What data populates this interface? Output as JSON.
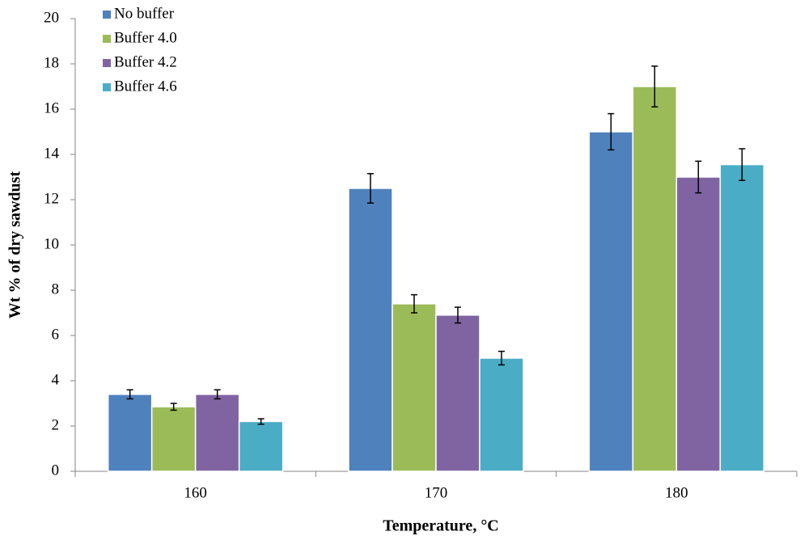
{
  "chart_data": {
    "type": "bar",
    "x_label": "Temperature, °C",
    "y_label": "Wt % of dry sawdust",
    "categories": [
      "160",
      "170",
      "180"
    ],
    "series": [
      {
        "name": "No buffer",
        "color": "#4f81bd",
        "values": [
          3.4,
          12.5,
          15.0
        ],
        "errors": [
          0.2,
          0.65,
          0.8
        ]
      },
      {
        "name": "Buffer 4.0",
        "color": "#9bbb59",
        "values": [
          2.85,
          7.4,
          17.0
        ],
        "errors": [
          0.15,
          0.4,
          0.9
        ]
      },
      {
        "name": "Buffer 4.2",
        "color": "#8064a2",
        "values": [
          3.4,
          6.9,
          13.0
        ],
        "errors": [
          0.2,
          0.35,
          0.7
        ]
      },
      {
        "name": "Buffer 4.6",
        "color": "#4bacc6",
        "values": [
          2.2,
          5.0,
          13.55
        ],
        "errors": [
          0.12,
          0.3,
          0.7
        ]
      }
    ],
    "ylim": [
      0,
      20
    ],
    "yticks": [
      0,
      2,
      4,
      6,
      8,
      10,
      12,
      14,
      16,
      18,
      20
    ],
    "grid": false,
    "legend": "top-left"
  }
}
